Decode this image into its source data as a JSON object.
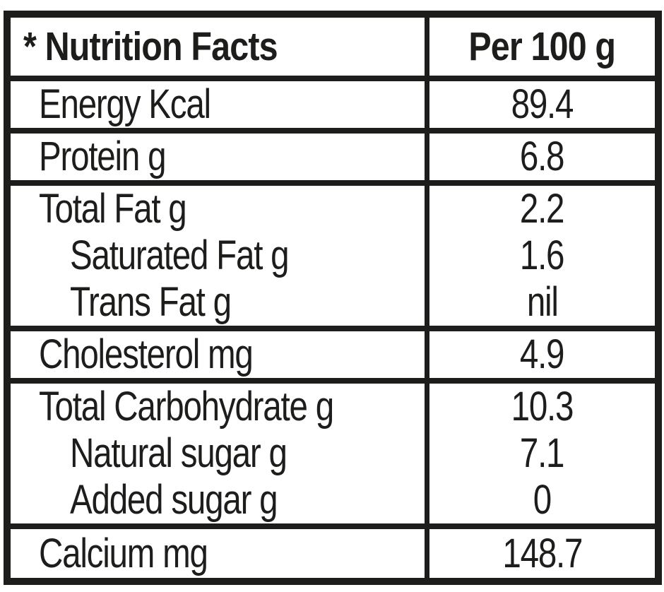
{
  "page": {
    "background": "#ffffff",
    "ink": "#1d1d1b"
  },
  "table": {
    "header": {
      "label": "* Nutrition Facts",
      "value": "Per 100 g"
    },
    "rows": [
      {
        "lines": [
          {
            "label": "Energy Kcal",
            "value": "89.4",
            "indent": false
          }
        ]
      },
      {
        "lines": [
          {
            "label": "Protein g",
            "value": "6.8",
            "indent": false
          }
        ]
      },
      {
        "lines": [
          {
            "label": "Total Fat g",
            "value": "2.2",
            "indent": false
          },
          {
            "label": "Saturated Fat g",
            "value": "1.6",
            "indent": true
          },
          {
            "label": "Trans Fat g",
            "value": "nil",
            "indent": true
          }
        ]
      },
      {
        "lines": [
          {
            "label": "Cholesterol mg",
            "value": "4.9",
            "indent": false
          }
        ]
      },
      {
        "lines": [
          {
            "label": "Total Carbohydrate g",
            "value": "10.3",
            "indent": false
          },
          {
            "label": "Natural sugar g",
            "value": "7.1",
            "indent": true
          },
          {
            "label": "Added sugar g",
            "value": "0",
            "indent": true
          }
        ]
      },
      {
        "lines": [
          {
            "label": "Calcium mg",
            "value": "148.7",
            "indent": false
          }
        ]
      }
    ]
  }
}
